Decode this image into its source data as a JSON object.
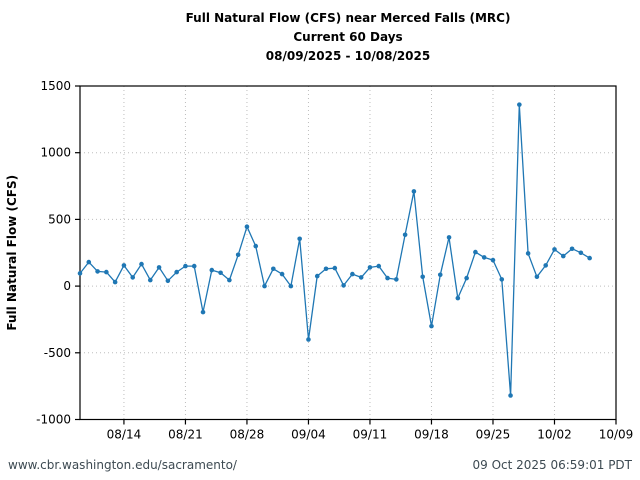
{
  "header": {
    "title": "Full Natural Flow (CFS) near Merced Falls (MRC)",
    "subtitle": "Current 60 Days",
    "date_range": "08/09/2025 - 10/08/2025"
  },
  "chart_data": {
    "type": "line",
    "title": "Full Natural Flow (CFS) near Merced Falls (MRC)",
    "subtitle": "Current 60 Days",
    "date_range": "08/09/2025 - 10/08/2025",
    "xlabel": "",
    "ylabel": "Full Natural Flow (CFS)",
    "ylim": [
      -1000,
      1500
    ],
    "yticks": [
      -1000,
      -500,
      0,
      500,
      1000,
      1500
    ],
    "x_axis_range": [
      "08/09",
      "10/09"
    ],
    "xtick_labels": [
      "08/14",
      "08/21",
      "08/28",
      "09/04",
      "09/11",
      "09/18",
      "09/25",
      "10/02",
      "10/09"
    ],
    "grid": "dotted",
    "legend_position": "none",
    "line_color": "#1f77b4",
    "x": [
      "08/09",
      "08/10",
      "08/11",
      "08/12",
      "08/13",
      "08/14",
      "08/15",
      "08/16",
      "08/17",
      "08/18",
      "08/19",
      "08/20",
      "08/21",
      "08/22",
      "08/23",
      "08/24",
      "08/25",
      "08/26",
      "08/27",
      "08/28",
      "08/29",
      "08/30",
      "08/31",
      "09/01",
      "09/02",
      "09/03",
      "09/04",
      "09/05",
      "09/06",
      "09/07",
      "09/08",
      "09/09",
      "09/10",
      "09/11",
      "09/12",
      "09/13",
      "09/14",
      "09/15",
      "09/16",
      "09/17",
      "09/18",
      "09/19",
      "09/20",
      "09/21",
      "09/22",
      "09/23",
      "09/24",
      "09/25",
      "09/26",
      "09/27",
      "09/28",
      "09/29",
      "09/30",
      "10/01",
      "10/02",
      "10/03",
      "10/04",
      "10/05",
      "10/06"
    ],
    "values": [
      95,
      180,
      110,
      105,
      30,
      155,
      65,
      165,
      45,
      140,
      40,
      105,
      150,
      150,
      -195,
      120,
      100,
      45,
      235,
      445,
      300,
      0,
      130,
      90,
      0,
      355,
      -400,
      75,
      130,
      135,
      5,
      90,
      65,
      140,
      150,
      60,
      50,
      385,
      710,
      70,
      -300,
      85,
      365,
      -90,
      60,
      255,
      215,
      195,
      50,
      -820,
      1360,
      245,
      70,
      155,
      275,
      225,
      280,
      250,
      210
    ]
  },
  "footer": {
    "url": "www.cbr.washington.edu/sacramento/",
    "timestamp": "09 Oct 2025 06:59:01 PDT"
  }
}
